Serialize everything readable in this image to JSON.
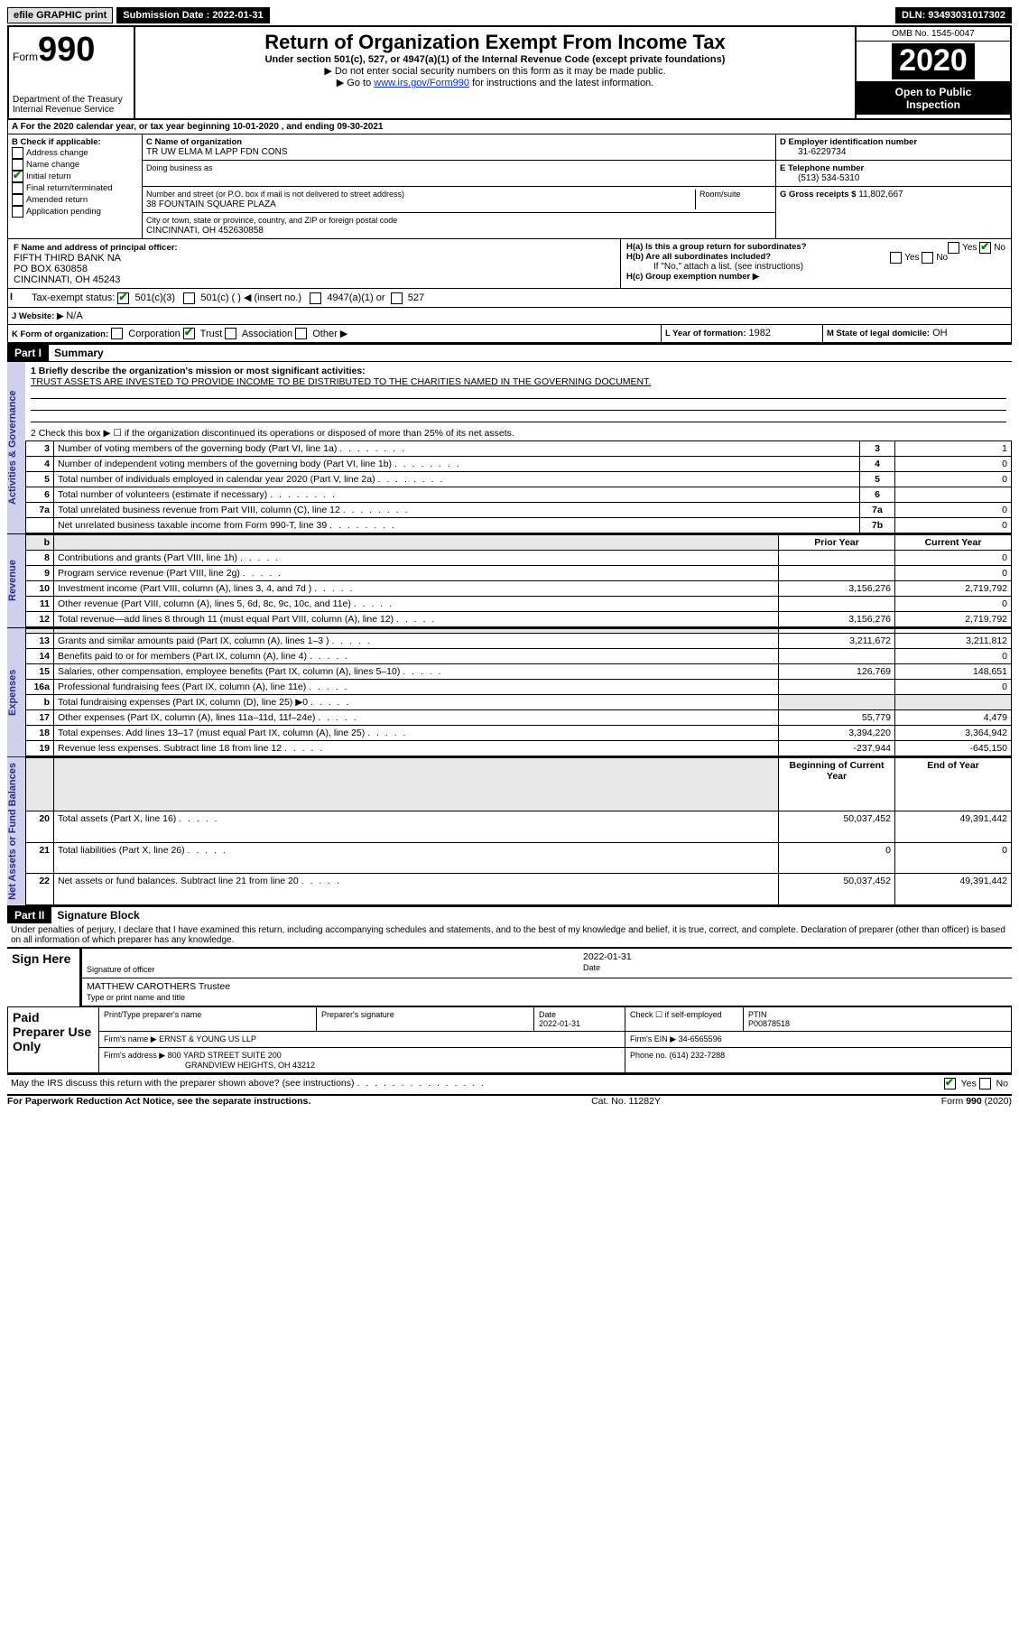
{
  "topbar": {
    "efile": "efile GRAPHIC print",
    "submission_label": "Submission Date : 2022-01-31",
    "dln": "DLN: 93493031017302"
  },
  "header": {
    "form_prefix": "Form",
    "form_number": "990",
    "dept1": "Department of the Treasury",
    "dept2": "Internal Revenue Service",
    "title": "Return of Organization Exempt From Income Tax",
    "sub1": "Under section 501(c), 527, or 4947(a)(1) of the Internal Revenue Code (except private foundations)",
    "sub2": "▶ Do not enter social security numbers on this form as it may be made public.",
    "sub3_pre": "▶ Go to ",
    "sub3_link": "www.irs.gov/Form990",
    "sub3_post": " for instructions and the latest information.",
    "omb": "OMB No. 1545-0047",
    "year": "2020",
    "insp1": "Open to Public",
    "insp2": "Inspection"
  },
  "line_a": "For the 2020 calendar year, or tax year beginning 10-01-2020    , and ending 09-30-2021",
  "box_b": {
    "label": "B Check if applicable:",
    "items": [
      "Address change",
      "Name change",
      "Initial return",
      "Final return/terminated",
      "Amended return",
      "Application pending"
    ],
    "checked_index": 2
  },
  "box_c": {
    "label_name": "C Name of organization",
    "org_name": "TR UW ELMA M LAPP FDN CONS",
    "dba_label": "Doing business as",
    "addr_label": "Number and street (or P.O. box if mail is not delivered to street address)",
    "room_label": "Room/suite",
    "street": "38 FOUNTAIN SQUARE PLAZA",
    "city_label": "City or town, state or province, country, and ZIP or foreign postal code",
    "city": "CINCINNATI, OH  452630858"
  },
  "box_d": {
    "label": "D Employer identification number",
    "value": "31-6229734"
  },
  "box_e": {
    "label": "E Telephone number",
    "value": "(513) 534-5310"
  },
  "box_g": {
    "label": "G Gross receipts $",
    "value": "11,802,667"
  },
  "box_f": {
    "label": "F Name and address of principal officer:",
    "line1": "FIFTH THIRD BANK NA",
    "line2": "PO BOX 630858",
    "line3": "CINCINNATI, OH  45243"
  },
  "box_h": {
    "a": "H(a)  Is this a group return for subordinates?",
    "b": "H(b)  Are all subordinates included?",
    "ifno": "If \"No,\" attach a list. (see instructions)",
    "c": "H(c)  Group exemption number ▶",
    "a_no_checked": true
  },
  "box_i": {
    "label": "Tax-exempt status:",
    "opts": [
      "501(c)(3)",
      "501(c) (   ) ◀ (insert no.)",
      "4947(a)(1) or",
      "527"
    ],
    "checked_index": 0
  },
  "box_j": {
    "label": "J   Website: ▶",
    "value": "N/A"
  },
  "box_k": {
    "label": "K Form of organization:",
    "opts": [
      "Corporation",
      "Trust",
      "Association",
      "Other ▶"
    ],
    "checked_index": 1
  },
  "box_l": {
    "label": "L Year of formation:",
    "value": "1982"
  },
  "box_m": {
    "label": "M State of legal domicile:",
    "value": "OH"
  },
  "part1": {
    "num": "Part I",
    "title": "Summary",
    "q1_label": "1  Briefly describe the organization's mission or most significant activities:",
    "q1_text": "TRUST ASSETS ARE INVESTED TO PROVIDE INCOME TO BE DISTRIBUTED TO THE CHARITIES NAMED IN THE GOVERNING DOCUMENT.",
    "q2": "2    Check this box ▶ ☐  if the organization discontinued its operations or disposed of more than 25% of its net assets.",
    "rows_gov": [
      {
        "n": "3",
        "t": "Number of voting members of the governing body (Part VI, line 1a)",
        "box": "3",
        "v": "1"
      },
      {
        "n": "4",
        "t": "Number of independent voting members of the governing body (Part VI, line 1b)",
        "box": "4",
        "v": "0"
      },
      {
        "n": "5",
        "t": "Total number of individuals employed in calendar year 2020 (Part V, line 2a)",
        "box": "5",
        "v": "0"
      },
      {
        "n": "6",
        "t": "Total number of volunteers (estimate if necessary)",
        "box": "6",
        "v": ""
      },
      {
        "n": "7a",
        "t": "Total unrelated business revenue from Part VIII, column (C), line 12",
        "box": "7a",
        "v": "0"
      },
      {
        "n": "",
        "t": "Net unrelated business taxable income from Form 990-T, line 39",
        "box": "7b",
        "v": "0"
      }
    ],
    "col_headers": {
      "b": "b",
      "prior": "Prior Year",
      "current": "Current Year"
    },
    "rows_rev": [
      {
        "n": "8",
        "t": "Contributions and grants (Part VIII, line 1h)",
        "p": "",
        "c": "0"
      },
      {
        "n": "9",
        "t": "Program service revenue (Part VIII, line 2g)",
        "p": "",
        "c": "0"
      },
      {
        "n": "10",
        "t": "Investment income (Part VIII, column (A), lines 3, 4, and 7d )",
        "p": "3,156,276",
        "c": "2,719,792"
      },
      {
        "n": "11",
        "t": "Other revenue (Part VIII, column (A), lines 5, 6d, 8c, 9c, 10c, and 11e)",
        "p": "",
        "c": "0"
      },
      {
        "n": "12",
        "t": "Total revenue—add lines 8 through 11 (must equal Part VIII, column (A), line 12)",
        "p": "3,156,276",
        "c": "2,719,792"
      }
    ],
    "rows_exp": [
      {
        "n": "13",
        "t": "Grants and similar amounts paid (Part IX, column (A), lines 1–3 )",
        "p": "3,211,672",
        "c": "3,211,812"
      },
      {
        "n": "14",
        "t": "Benefits paid to or for members (Part IX, column (A), line 4)",
        "p": "",
        "c": "0"
      },
      {
        "n": "15",
        "t": "Salaries, other compensation, employee benefits (Part IX, column (A), lines 5–10)",
        "p": "126,769",
        "c": "148,651"
      },
      {
        "n": "16a",
        "t": "Professional fundraising fees (Part IX, column (A), line 11e)",
        "p": "",
        "c": "0"
      },
      {
        "n": "b",
        "t": "Total fundraising expenses (Part IX, column (D), line 25) ▶0",
        "p": "SHADE",
        "c": "SHADE"
      },
      {
        "n": "17",
        "t": "Other expenses (Part IX, column (A), lines 11a–11d, 11f–24e)",
        "p": "55,779",
        "c": "4,479"
      },
      {
        "n": "18",
        "t": "Total expenses. Add lines 13–17 (must equal Part IX, column (A), line 25)",
        "p": "3,394,220",
        "c": "3,364,942"
      },
      {
        "n": "19",
        "t": "Revenue less expenses. Subtract line 18 from line 12",
        "p": "-237,944",
        "c": "-645,150"
      }
    ],
    "net_headers": {
      "b": "Beginning of Current Year",
      "e": "End of Year"
    },
    "rows_net": [
      {
        "n": "20",
        "t": "Total assets (Part X, line 16)",
        "p": "50,037,452",
        "c": "49,391,442"
      },
      {
        "n": "21",
        "t": "Total liabilities (Part X, line 26)",
        "p": "0",
        "c": "0"
      },
      {
        "n": "22",
        "t": "Net assets or fund balances. Subtract line 21 from line 20",
        "p": "50,037,452",
        "c": "49,391,442"
      }
    ],
    "vlabels": {
      "gov": "Activities & Governance",
      "rev": "Revenue",
      "exp": "Expenses",
      "net": "Net Assets or Fund Balances"
    }
  },
  "part2": {
    "num": "Part II",
    "title": "Signature Block",
    "perjury": "Under penalties of perjury, I declare that I have examined this return, including accompanying schedules and statements, and to the best of my knowledge and belief, it is true, correct, and complete. Declaration of preparer (other than officer) is based on all information of which preparer has any knowledge.",
    "sign_here": "Sign Here",
    "sig_officer_label": "Signature of officer",
    "date_label": "Date",
    "sig_date": "2022-01-31",
    "officer_name": "MATTHEW CAROTHERS  Trustee",
    "type_label": "Type or print name and title",
    "paid": "Paid Preparer Use Only",
    "prep_name_label": "Print/Type preparer's name",
    "prep_sig_label": "Preparer's signature",
    "prep_date_label": "Date",
    "prep_date": "2022-01-31",
    "check_label": "Check ☐ if self-employed",
    "ptin_label": "PTIN",
    "ptin": "P00878518",
    "firm_name_label": "Firm's name      ▶",
    "firm_name": "ERNST & YOUNG US LLP",
    "firm_ein_label": "Firm's EIN ▶",
    "firm_ein": "34-6565596",
    "firm_addr_label": "Firm's address ▶",
    "firm_addr1": "800 YARD STREET SUITE 200",
    "firm_addr2": "GRANDVIEW HEIGHTS, OH  43212",
    "phone_label": "Phone no.",
    "phone": "(614) 232-7288",
    "discuss": "May the IRS discuss this return with the preparer shown above? (see instructions)",
    "discuss_yes_checked": true
  },
  "footer": {
    "left": "For Paperwork Reduction Act Notice, see the separate instructions.",
    "mid": "Cat. No. 11282Y",
    "right": "Form 990 (2020)"
  }
}
